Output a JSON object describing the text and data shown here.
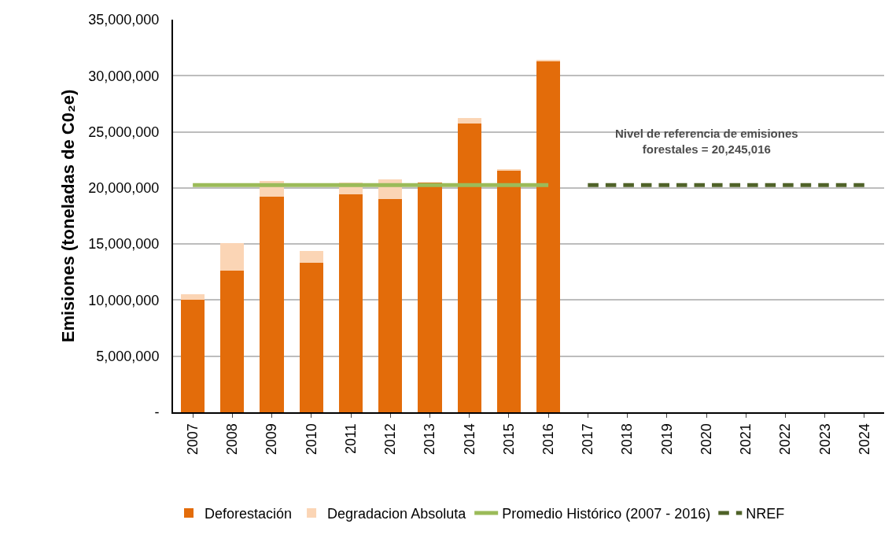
{
  "chart_data": {
    "type": "bar",
    "stacked": true,
    "ylabel": "Emisiones (toneladas de C0₂e)",
    "categories": [
      "2007",
      "2008",
      "2009",
      "2010",
      "2011",
      "2012",
      "2013",
      "2014",
      "2015",
      "2016",
      "2017",
      "2018",
      "2019",
      "2020",
      "2021",
      "2022",
      "2023",
      "2024"
    ],
    "series": [
      {
        "name": "Deforestación",
        "color": "#e36c0a",
        "values": [
          10050000,
          12650000,
          19250000,
          13350000,
          19450000,
          19000000,
          20500000,
          25750000,
          21600000,
          31250000,
          null,
          null,
          null,
          null,
          null,
          null,
          null,
          null
        ]
      },
      {
        "name": "Degradacion Absoluta",
        "color": "#fbd5b5",
        "values": [
          450000,
          2400000,
          1400000,
          1050000,
          1050000,
          1750000,
          null,
          500000,
          100000,
          200000,
          null,
          null,
          null,
          null,
          null,
          null,
          null,
          null
        ]
      },
      {
        "name": "Promedio Histórico (2007 - 2016)",
        "type": "line",
        "line_style": "solid",
        "color": "#9bbb59",
        "values": [
          20245016,
          20245016,
          20245016,
          20245016,
          20245016,
          20245016,
          20245016,
          20245016,
          20245016,
          20245016,
          null,
          null,
          null,
          null,
          null,
          null,
          null,
          null
        ]
      },
      {
        "name": "NREF",
        "type": "line",
        "line_style": "dashed",
        "color": "#4f6228",
        "values": [
          null,
          null,
          null,
          null,
          null,
          null,
          null,
          null,
          null,
          null,
          20245016,
          20245016,
          20245016,
          20245016,
          20245016,
          20245016,
          20245016,
          20245016
        ]
      }
    ],
    "ylim": [
      0,
      35000000
    ],
    "yticks": [
      {
        "value": 0,
        "label": "-"
      },
      {
        "value": 5000000,
        "label": "5,000,000"
      },
      {
        "value": 10000000,
        "label": "10,000,000"
      },
      {
        "value": 15000000,
        "label": "15,000,000"
      },
      {
        "value": 20000000,
        "label": "20,000,000"
      },
      {
        "value": 25000000,
        "label": "25,000,000"
      },
      {
        "value": 30000000,
        "label": "30,000,000"
      },
      {
        "value": 35000000,
        "label": "35,000,000"
      }
    ],
    "grid": "y",
    "legend": "bottom",
    "annotations": [
      {
        "text": "Nivel de referencia de emisiones\nforestales = 20,245,016",
        "x": "2020",
        "y": 20245016
      }
    ]
  }
}
